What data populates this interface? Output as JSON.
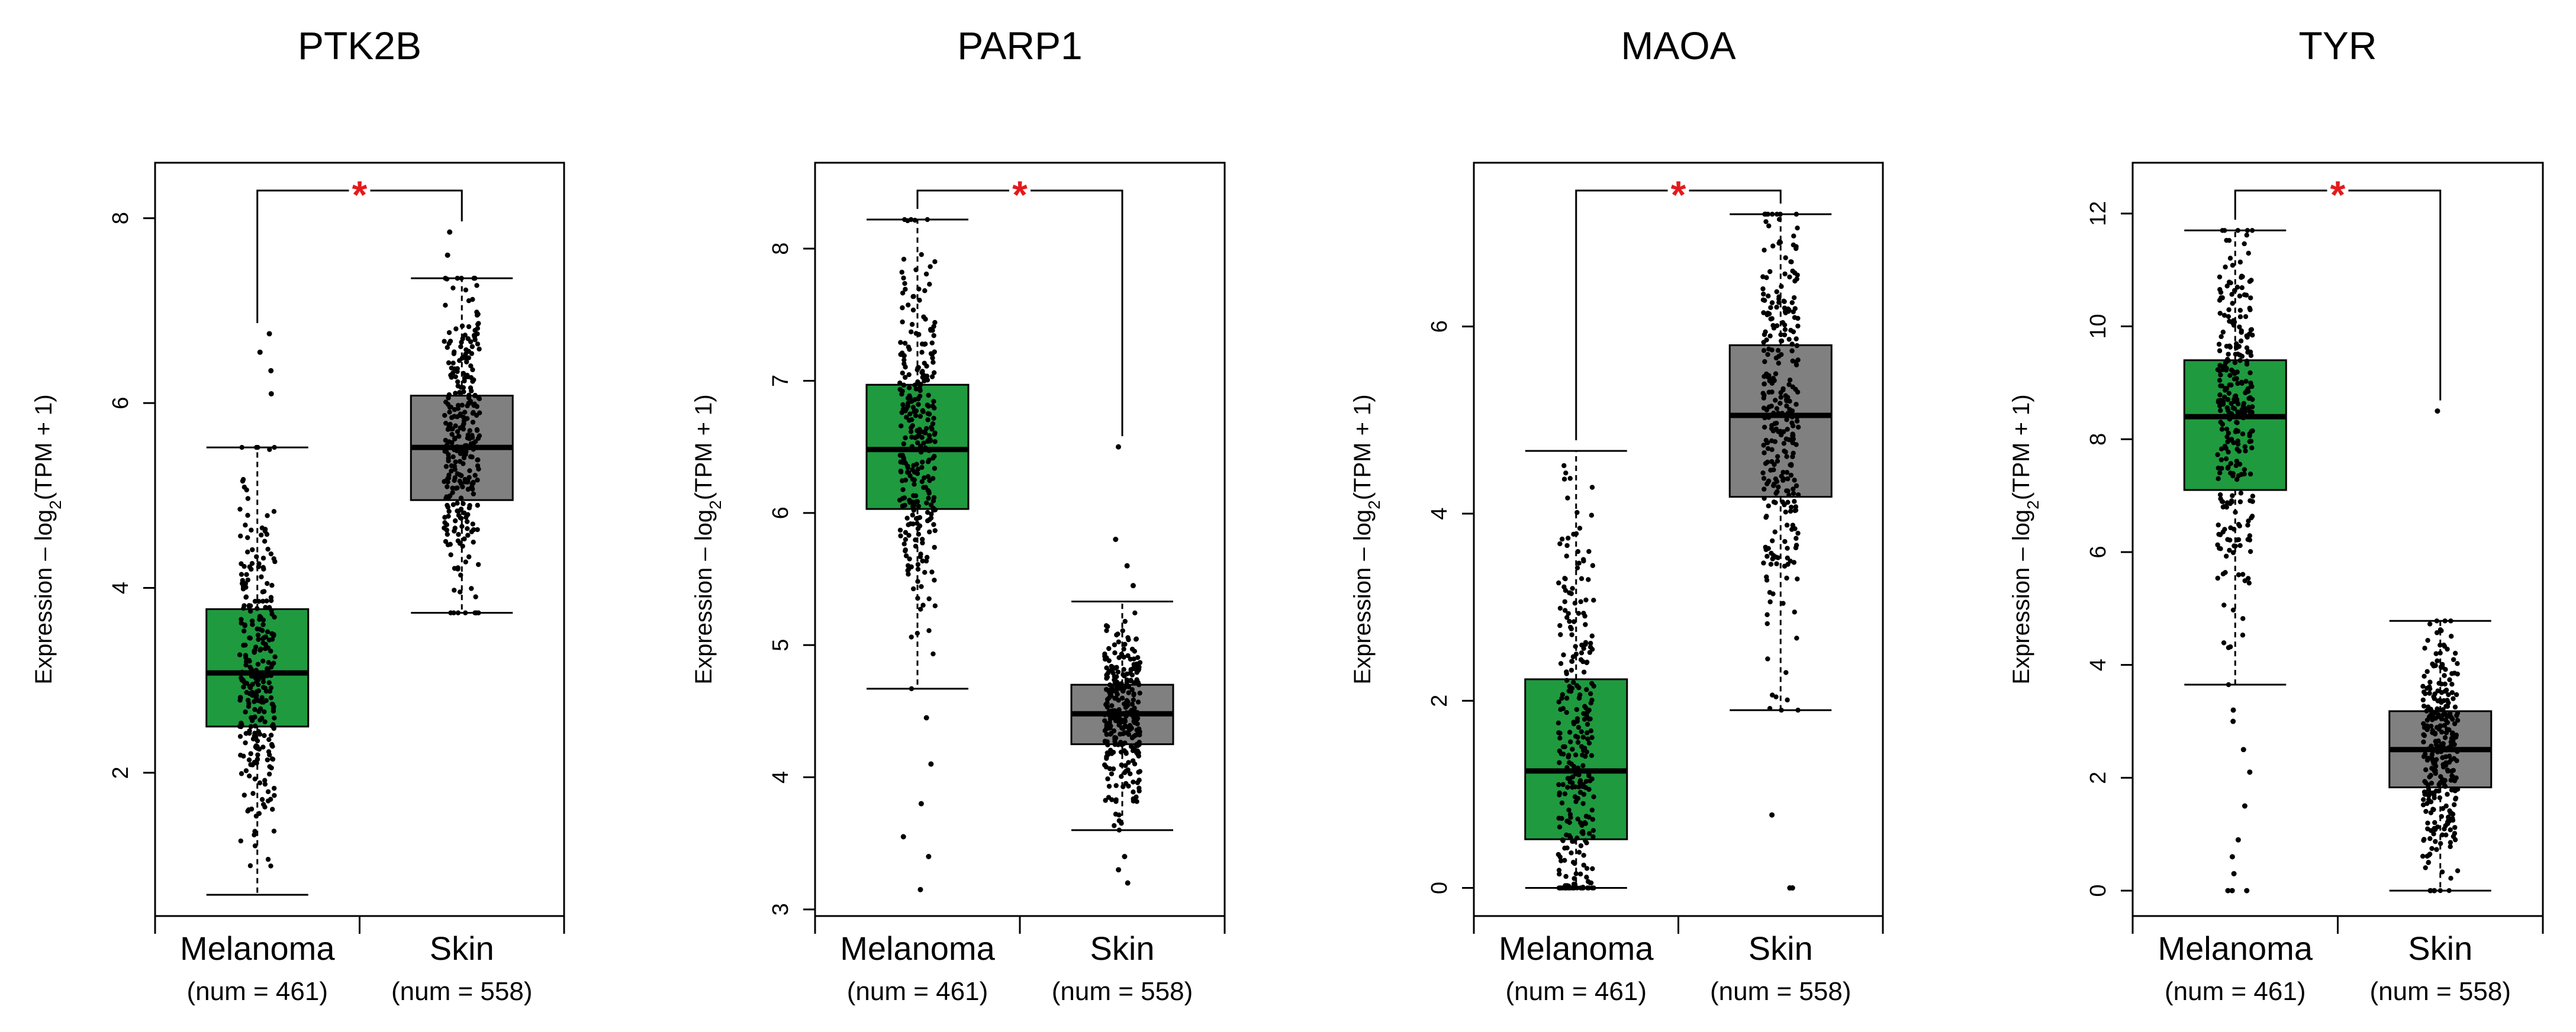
{
  "colors": {
    "melanoma": "#1f9a3f",
    "skin": "#808080",
    "significance": "#e41a1c",
    "axis": "#000000",
    "points": "#000000"
  },
  "chart_data": [
    {
      "type": "boxplot",
      "title": "PTK2B",
      "ylabel": "Expression – log2(TPM + 1)",
      "ylim": [
        0.45,
        8.6
      ],
      "yticks": [
        2,
        4,
        6,
        8
      ],
      "significance": "*",
      "groups": [
        {
          "name": "Melanoma",
          "n_label": "(num = 461)",
          "color_key": "melanoma",
          "q1": 2.5,
          "median": 3.08,
          "q3": 3.77,
          "whisker_low": 0.68,
          "whisker_high": 5.52,
          "outliers": [
            6.1,
            6.35,
            6.55,
            6.75
          ]
        },
        {
          "name": "Skin",
          "n_label": "(num = 558)",
          "color_key": "skin",
          "q1": 4.95,
          "median": 5.52,
          "q3": 6.08,
          "whisker_low": 3.73,
          "whisker_high": 7.35,
          "outliers": [
            7.6,
            7.85
          ]
        }
      ]
    },
    {
      "type": "boxplot",
      "title": "PARP1",
      "ylabel": "Expression – log2(TPM + 1)",
      "ylim": [
        2.95,
        8.65
      ],
      "yticks": [
        3,
        4,
        5,
        6,
        7,
        8
      ],
      "significance": "*",
      "groups": [
        {
          "name": "Melanoma",
          "n_label": "(num = 461)",
          "color_key": "melanoma",
          "q1": 6.03,
          "median": 6.48,
          "q3": 6.97,
          "whisker_low": 4.67,
          "whisker_high": 8.22,
          "outliers": [
            3.15,
            3.4,
            3.55,
            3.8,
            4.1,
            4.45
          ]
        },
        {
          "name": "Skin",
          "n_label": "(num = 558)",
          "color_key": "skin",
          "q1": 4.25,
          "median": 4.48,
          "q3": 4.7,
          "whisker_low": 3.6,
          "whisker_high": 5.33,
          "outliers": [
            3.2,
            3.3,
            3.4,
            5.45,
            5.6,
            5.8,
            6.5
          ]
        }
      ]
    },
    {
      "type": "boxplot",
      "title": "MAOA",
      "ylabel": "Expression – log2(TPM + 1)",
      "ylim": [
        -0.3,
        7.75
      ],
      "yticks": [
        0,
        2,
        4,
        6
      ],
      "significance": "*",
      "groups": [
        {
          "name": "Melanoma",
          "n_label": "(num = 461)",
          "color_key": "melanoma",
          "q1": 0.52,
          "median": 1.25,
          "q3": 2.23,
          "whisker_low": 0.0,
          "whisker_high": 4.67,
          "outliers": []
        },
        {
          "name": "Skin",
          "n_label": "(num = 558)",
          "color_key": "skin",
          "q1": 4.18,
          "median": 5.05,
          "q3": 5.8,
          "whisker_low": 1.9,
          "whisker_high": 7.2,
          "outliers": [
            0.0,
            0.0,
            0.78
          ]
        }
      ]
    },
    {
      "type": "boxplot",
      "title": "TYR",
      "ylabel": "Expression – log2(TPM + 1)",
      "ylim": [
        -0.45,
        12.9
      ],
      "yticks": [
        0,
        2,
        4,
        6,
        8,
        10,
        12
      ],
      "significance": "*",
      "groups": [
        {
          "name": "Melanoma",
          "n_label": "(num = 461)",
          "color_key": "melanoma",
          "q1": 7.1,
          "median": 8.4,
          "q3": 9.4,
          "whisker_low": 3.65,
          "whisker_high": 11.7,
          "outliers": [
            0.0,
            0.0,
            0.0,
            0.3,
            0.6,
            0.9,
            1.5,
            2.1,
            2.5,
            3.0,
            3.2
          ]
        },
        {
          "name": "Skin",
          "n_label": "(num = 558)",
          "color_key": "skin",
          "q1": 1.83,
          "median": 2.5,
          "q3": 3.18,
          "whisker_low": 0.0,
          "whisker_high": 4.78,
          "outliers": [
            0.0,
            0.0,
            8.5
          ]
        }
      ]
    }
  ]
}
